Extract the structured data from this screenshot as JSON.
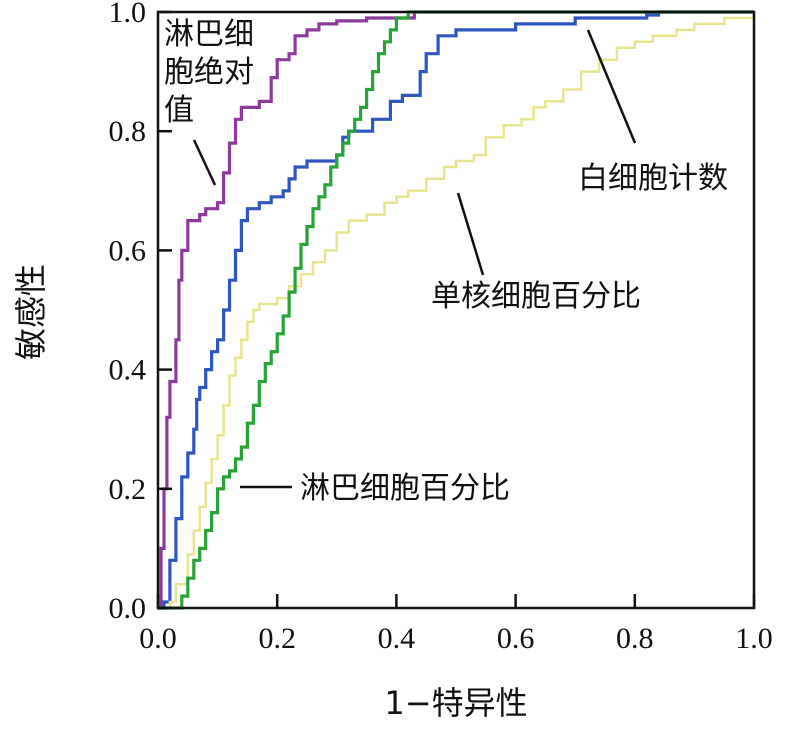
{
  "chart_data": {
    "type": "line",
    "xlabel": "1−特异性",
    "ylabel": "敏感性",
    "xlim": [
      0,
      1
    ],
    "ylim": [
      0,
      1
    ],
    "x_ticks": [
      "0.0",
      "0.2",
      "0.4",
      "0.6",
      "0.8",
      "1.0"
    ],
    "y_ticks": [
      "0.0",
      "0.2",
      "0.4",
      "0.6",
      "0.8",
      "1.0"
    ],
    "grid": false,
    "series": [
      {
        "name": "淋巴细胞绝对值",
        "color": "#8e3a9d",
        "points": [
          [
            0,
            0
          ],
          [
            0.005,
            0.1
          ],
          [
            0.01,
            0.2
          ],
          [
            0.015,
            0.32
          ],
          [
            0.02,
            0.38
          ],
          [
            0.03,
            0.45
          ],
          [
            0.035,
            0.55
          ],
          [
            0.04,
            0.6
          ],
          [
            0.05,
            0.65
          ],
          [
            0.07,
            0.66
          ],
          [
            0.08,
            0.67
          ],
          [
            0.1,
            0.68
          ],
          [
            0.11,
            0.73
          ],
          [
            0.12,
            0.78
          ],
          [
            0.13,
            0.82
          ],
          [
            0.14,
            0.84
          ],
          [
            0.17,
            0.85
          ],
          [
            0.19,
            0.89
          ],
          [
            0.2,
            0.92
          ],
          [
            0.22,
            0.93
          ],
          [
            0.23,
            0.96
          ],
          [
            0.25,
            0.97
          ],
          [
            0.27,
            0.98
          ],
          [
            0.3,
            0.985
          ],
          [
            0.35,
            0.99
          ],
          [
            0.43,
            1.0
          ],
          [
            1.0,
            1.0
          ]
        ],
        "label": "淋巴细胞绝对值"
      },
      {
        "name": "白细胞计数",
        "color": "#2f56c0",
        "points": [
          [
            0,
            0
          ],
          [
            0.01,
            0.01
          ],
          [
            0.02,
            0.08
          ],
          [
            0.03,
            0.15
          ],
          [
            0.04,
            0.22
          ],
          [
            0.05,
            0.26
          ],
          [
            0.06,
            0.3
          ],
          [
            0.065,
            0.35
          ],
          [
            0.07,
            0.37
          ],
          [
            0.08,
            0.4
          ],
          [
            0.09,
            0.43
          ],
          [
            0.1,
            0.45
          ],
          [
            0.11,
            0.5
          ],
          [
            0.12,
            0.55
          ],
          [
            0.13,
            0.6
          ],
          [
            0.14,
            0.65
          ],
          [
            0.15,
            0.67
          ],
          [
            0.17,
            0.68
          ],
          [
            0.19,
            0.69
          ],
          [
            0.21,
            0.7
          ],
          [
            0.22,
            0.72
          ],
          [
            0.23,
            0.74
          ],
          [
            0.25,
            0.75
          ],
          [
            0.3,
            0.76
          ],
          [
            0.31,
            0.79
          ],
          [
            0.32,
            0.8
          ],
          [
            0.36,
            0.82
          ],
          [
            0.39,
            0.85
          ],
          [
            0.41,
            0.86
          ],
          [
            0.44,
            0.9
          ],
          [
            0.45,
            0.93
          ],
          [
            0.47,
            0.96
          ],
          [
            0.5,
            0.97
          ],
          [
            0.6,
            0.98
          ],
          [
            0.7,
            0.99
          ],
          [
            0.82,
            0.995
          ],
          [
            0.84,
            1.0
          ],
          [
            1.0,
            1.0
          ]
        ],
        "label": "白细胞计数"
      },
      {
        "name": "单核细胞百分比",
        "color": "#e9e48f",
        "points": [
          [
            0,
            0
          ],
          [
            0.02,
            0.01
          ],
          [
            0.03,
            0.04
          ],
          [
            0.05,
            0.09
          ],
          [
            0.06,
            0.13
          ],
          [
            0.07,
            0.17
          ],
          [
            0.08,
            0.21
          ],
          [
            0.09,
            0.25
          ],
          [
            0.1,
            0.29
          ],
          [
            0.11,
            0.34
          ],
          [
            0.12,
            0.39
          ],
          [
            0.13,
            0.42
          ],
          [
            0.14,
            0.45
          ],
          [
            0.15,
            0.48
          ],
          [
            0.16,
            0.5
          ],
          [
            0.17,
            0.51
          ],
          [
            0.2,
            0.52
          ],
          [
            0.22,
            0.54
          ],
          [
            0.24,
            0.56
          ],
          [
            0.26,
            0.58
          ],
          [
            0.28,
            0.6
          ],
          [
            0.3,
            0.63
          ],
          [
            0.32,
            0.65
          ],
          [
            0.35,
            0.66
          ],
          [
            0.38,
            0.68
          ],
          [
            0.4,
            0.69
          ],
          [
            0.42,
            0.7
          ],
          [
            0.45,
            0.72
          ],
          [
            0.48,
            0.74
          ],
          [
            0.5,
            0.75
          ],
          [
            0.53,
            0.76
          ],
          [
            0.55,
            0.79
          ],
          [
            0.58,
            0.81
          ],
          [
            0.61,
            0.82
          ],
          [
            0.63,
            0.84
          ],
          [
            0.65,
            0.85
          ],
          [
            0.68,
            0.87
          ],
          [
            0.71,
            0.9
          ],
          [
            0.74,
            0.92
          ],
          [
            0.77,
            0.94
          ],
          [
            0.8,
            0.95
          ],
          [
            0.83,
            0.96
          ],
          [
            0.87,
            0.97
          ],
          [
            0.9,
            0.98
          ],
          [
            0.95,
            0.99
          ],
          [
            1.0,
            1.0
          ]
        ],
        "label": "单核细胞百分比"
      },
      {
        "name": "淋巴细胞百分比",
        "color": "#27a337",
        "points": [
          [
            0,
            0
          ],
          [
            0.03,
            0.0
          ],
          [
            0.04,
            0.02
          ],
          [
            0.05,
            0.05
          ],
          [
            0.06,
            0.08
          ],
          [
            0.07,
            0.1
          ],
          [
            0.08,
            0.13
          ],
          [
            0.09,
            0.16
          ],
          [
            0.1,
            0.2
          ],
          [
            0.11,
            0.22
          ],
          [
            0.12,
            0.23
          ],
          [
            0.13,
            0.25
          ],
          [
            0.14,
            0.27
          ],
          [
            0.15,
            0.31
          ],
          [
            0.16,
            0.34
          ],
          [
            0.17,
            0.38
          ],
          [
            0.18,
            0.41
          ],
          [
            0.19,
            0.43
          ],
          [
            0.2,
            0.46
          ],
          [
            0.21,
            0.49
          ],
          [
            0.22,
            0.53
          ],
          [
            0.23,
            0.57
          ],
          [
            0.24,
            0.61
          ],
          [
            0.25,
            0.64
          ],
          [
            0.26,
            0.67
          ],
          [
            0.27,
            0.69
          ],
          [
            0.28,
            0.71
          ],
          [
            0.29,
            0.74
          ],
          [
            0.3,
            0.76
          ],
          [
            0.31,
            0.78
          ],
          [
            0.32,
            0.8
          ],
          [
            0.33,
            0.82
          ],
          [
            0.34,
            0.84
          ],
          [
            0.35,
            0.87
          ],
          [
            0.36,
            0.9
          ],
          [
            0.37,
            0.93
          ],
          [
            0.38,
            0.95
          ],
          [
            0.39,
            0.97
          ],
          [
            0.4,
            0.99
          ],
          [
            0.42,
            1.0
          ],
          [
            1.0,
            1.0
          ]
        ],
        "label": "淋巴细胞百分比"
      }
    ]
  }
}
